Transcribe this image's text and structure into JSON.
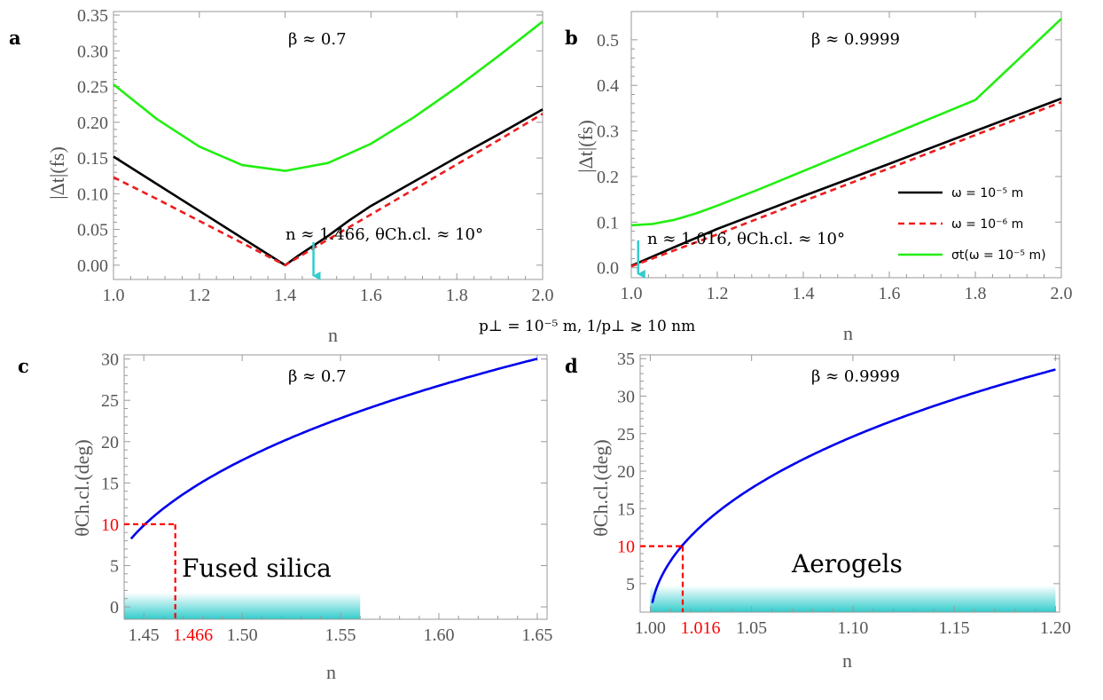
{
  "chart_data": [
    {
      "panel": "a",
      "type": "line",
      "beta_label": "β ≈ 0.7",
      "xlabel": "n",
      "ylabel": "|Δt|(fs)",
      "xlim": [
        1.0,
        2.0
      ],
      "ylim": [
        -0.02,
        0.355
      ],
      "xticks": [
        1.0,
        1.2,
        1.4,
        1.6,
        1.8,
        2.0
      ],
      "xtick_labels": [
        "1.0",
        "1.2",
        "1.4",
        "1.6",
        "1.8",
        "2.0"
      ],
      "yticks": [
        0.0,
        0.05,
        0.1,
        0.15,
        0.2,
        0.25,
        0.3,
        0.35
      ],
      "ytick_labels": [
        "0.00",
        "0.05",
        "0.10",
        "0.15",
        "0.20",
        "0.25",
        "0.30",
        "0.35"
      ],
      "annotation": "n ≈ 1.466,  θCh.cl. ≈ 10°",
      "arrow_x": 1.466,
      "series": [
        {
          "name": "ω = 10⁻⁵ m",
          "color": "#000000",
          "dash": "solid",
          "x": [
            1.0,
            1.1,
            1.2,
            1.3,
            1.4,
            1.43,
            1.45,
            1.5,
            1.55,
            1.6,
            1.7,
            1.8,
            1.9,
            2.0
          ],
          "y": [
            0.152,
            0.114,
            0.076,
            0.038,
            0.0,
            0.013,
            0.021,
            0.041,
            0.063,
            0.083,
            0.117,
            0.151,
            0.184,
            0.218
          ]
        },
        {
          "name": "ω = 10⁻⁶ m",
          "color": "#ee1c1c",
          "dash": "dashed",
          "x": [
            1.0,
            1.1,
            1.2,
            1.3,
            1.4,
            1.45,
            1.5,
            1.6,
            1.7,
            1.8,
            1.9,
            2.0
          ],
          "y": [
            0.123,
            0.093,
            0.062,
            0.031,
            0.0,
            0.018,
            0.036,
            0.071,
            0.106,
            0.141,
            0.176,
            0.212
          ]
        },
        {
          "name": "σt(ω = 10⁻⁵ m)",
          "color": "#22ee11",
          "dash": "solid",
          "x": [
            1.0,
            1.1,
            1.2,
            1.3,
            1.4,
            1.5,
            1.6,
            1.7,
            1.8,
            1.9,
            2.0
          ],
          "y": [
            0.253,
            0.205,
            0.166,
            0.14,
            0.132,
            0.143,
            0.17,
            0.207,
            0.249,
            0.294,
            0.341
          ]
        }
      ]
    },
    {
      "panel": "b",
      "type": "line",
      "beta_label": "β ≈ 0.9999",
      "xlabel": "n",
      "ylabel": "|Δt|(fs)",
      "xlim": [
        1.0,
        2.0
      ],
      "ylim": [
        -0.022,
        0.562
      ],
      "xticks": [
        1.0,
        1.2,
        1.4,
        1.6,
        1.8,
        2.0
      ],
      "xtick_labels": [
        "1.0",
        "1.2",
        "1.4",
        "1.6",
        "1.8",
        "2.0"
      ],
      "yticks": [
        0.0,
        0.1,
        0.2,
        0.3,
        0.4,
        0.5
      ],
      "ytick_labels": [
        "0.0",
        "0.1",
        "0.2",
        "0.3",
        "0.4",
        "0.5"
      ],
      "annotation": "n ≈ 1.016,  θCh.cl. ≈ 10°",
      "arrow_x": 1.016,
      "legend": [
        "ω = 10⁻⁵ m",
        "ω = 10⁻⁶ m",
        "σt(ω = 10⁻⁵ m)"
      ],
      "series": [
        {
          "name": "ω = 10⁻⁵ m",
          "color": "#000000",
          "dash": "solid",
          "x": [
            1.0,
            1.1,
            1.2,
            1.4,
            1.6,
            1.8,
            2.0
          ],
          "y": [
            0.004,
            0.045,
            0.085,
            0.157,
            0.228,
            0.3,
            0.371
          ]
        },
        {
          "name": "ω = 10⁻⁶ m",
          "color": "#ee1c1c",
          "dash": "dashed",
          "x": [
            1.0,
            1.1,
            1.2,
            1.4,
            1.6,
            1.8,
            2.0
          ],
          "y": [
            0.003,
            0.038,
            0.073,
            0.146,
            0.218,
            0.291,
            0.363
          ]
        },
        {
          "name": "σt(ω = 10⁻⁵ m)",
          "color": "#22ee11",
          "dash": "solid",
          "x": [
            1.0,
            1.05,
            1.1,
            1.15,
            1.2,
            1.3,
            1.4,
            1.6,
            1.8,
            2.0
          ],
          "y": [
            0.093,
            0.096,
            0.105,
            0.119,
            0.136,
            0.173,
            0.212,
            0.29,
            0.368,
            0.546
          ]
        }
      ]
    },
    {
      "panel": "c",
      "type": "line",
      "beta_label": "β ≈ 0.7",
      "xlabel": "n",
      "ylabel": "θCh.cl.(deg)",
      "xlim": [
        1.44,
        1.655
      ],
      "ylim": [
        -1.5,
        30.5
      ],
      "xticks": [
        1.45,
        1.5,
        1.55,
        1.6,
        1.65
      ],
      "xtick_labels": [
        "1.45",
        "1.50",
        "1.55",
        "1.60",
        "1.65"
      ],
      "yticks": [
        0,
        5,
        10,
        15,
        20,
        25,
        30
      ],
      "ytick_labels": [
        "0",
        "5",
        "10",
        "15",
        "20",
        "25",
        "30"
      ],
      "red_x": 1.466,
      "red_x_label": "1.466",
      "red_y": 10,
      "red_y_label": "10",
      "material": "Fused silica",
      "band": [
        1.44,
        1.56
      ],
      "series": [
        {
          "name": "θCh.cl.",
          "color": "#0000ee",
          "formula": "acos(1/(0.7 n))",
          "beta": 0.7,
          "x_start": 1.4435,
          "x_end": 1.65
        }
      ]
    },
    {
      "panel": "d",
      "type": "line",
      "beta_label": "β ≈ 0.9999",
      "xlabel": "n",
      "ylabel": "θCh.cl.(deg)",
      "xlim": [
        0.995,
        1.202
      ],
      "ylim": [
        1.2,
        35.5
      ],
      "xticks": [
        1.0,
        1.05,
        1.1,
        1.15,
        1.2
      ],
      "xtick_labels": [
        "1.00",
        "1.05",
        "1.10",
        "1.15",
        "1.20"
      ],
      "yticks": [
        5,
        10,
        15,
        20,
        25,
        30,
        35
      ],
      "ytick_labels": [
        "5",
        "10",
        "15",
        "20",
        "25",
        "30",
        "35"
      ],
      "red_x": 1.016,
      "red_x_label": "1.016",
      "red_y": 10,
      "red_y_label": "10",
      "material": "Aerogels",
      "band": [
        1.0,
        1.2
      ],
      "series": [
        {
          "name": "θCh.cl.",
          "color": "#0000ee",
          "formula": "acos(1/(0.9999 n))",
          "beta": 0.9999,
          "x_start": 1.001,
          "x_end": 1.2
        }
      ]
    }
  ],
  "shared_label": "p⊥ = 10⁻⁵ m, 1/p⊥ ≳ 10 nm",
  "colors": {
    "axis": "#999999",
    "tick_text": "#555555",
    "accent_red": "#ff0000",
    "arrow": "#33cccc",
    "band": "#33cccc"
  }
}
